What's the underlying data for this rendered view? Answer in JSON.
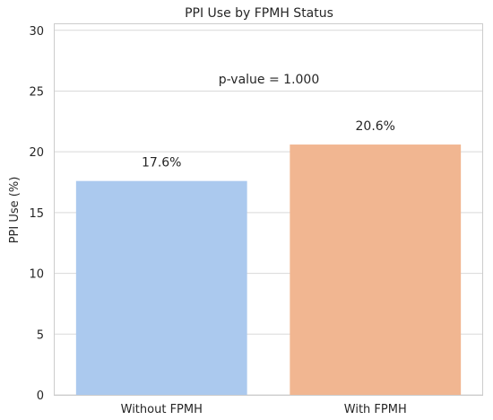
{
  "chart_data": {
    "type": "bar",
    "title": "PPI Use by FPMH Status",
    "xlabel": "",
    "ylabel": "PPI Use (%)",
    "categories": [
      "Without FPMH",
      "With FPMH"
    ],
    "values": [
      17.6,
      20.6
    ],
    "data_labels": [
      "17.6%",
      "20.6%"
    ],
    "bar_colors": [
      "#abc9ee",
      "#f1b691"
    ],
    "ylim": [
      0,
      30.5
    ],
    "yticks": [
      0,
      5,
      10,
      15,
      20,
      25,
      30
    ],
    "grid": true,
    "annotation": "p-value = 1.000"
  }
}
